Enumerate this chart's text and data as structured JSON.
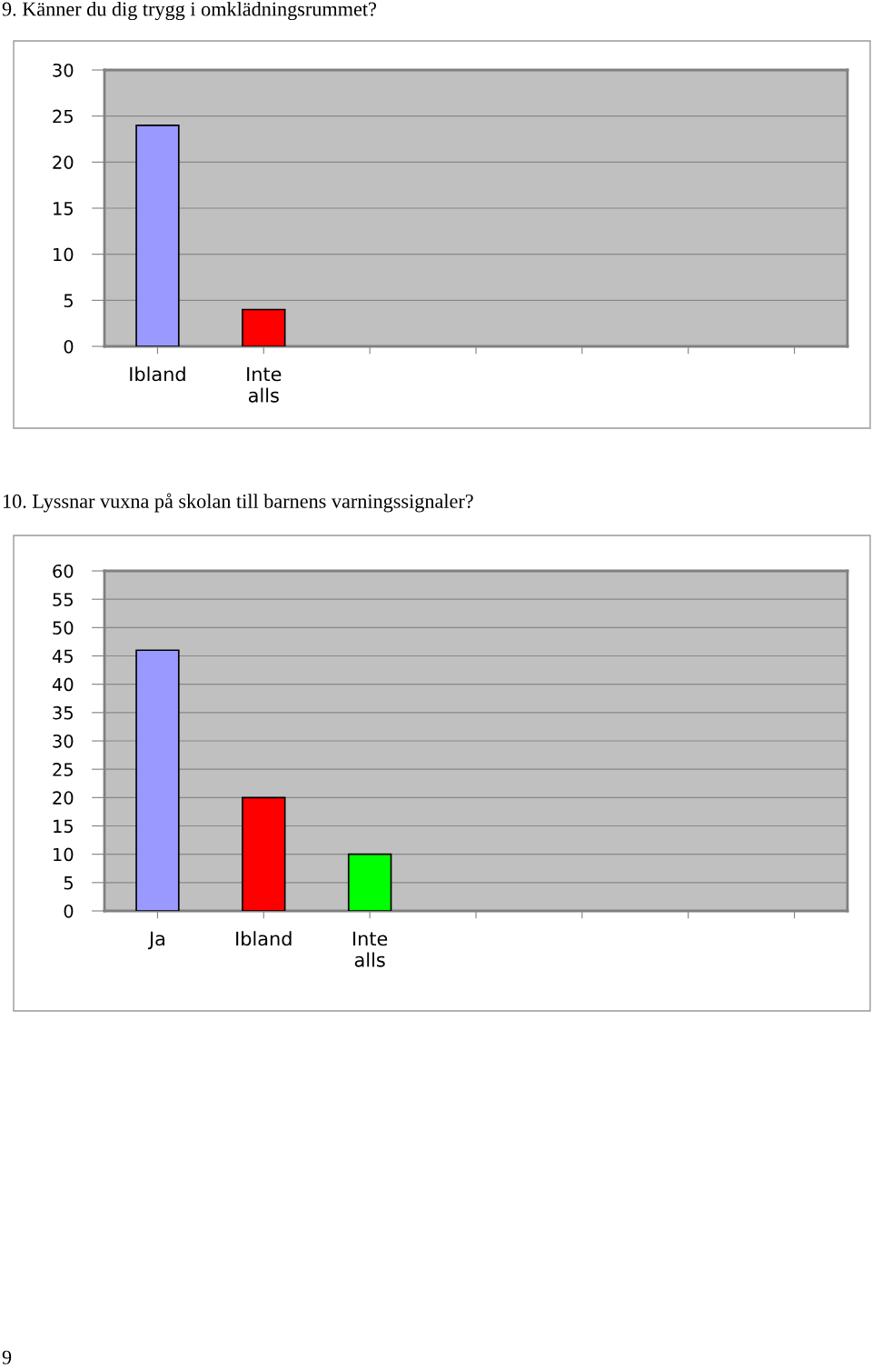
{
  "chart_data": [
    {
      "type": "bar",
      "title": "9. Känner du dig trygg i omklädningsrummet?",
      "categories": [
        "Ibland",
        "Inte alls",
        null,
        null,
        null,
        null,
        null
      ],
      "values": [
        24,
        4,
        null,
        null,
        null,
        null,
        null
      ],
      "colors": [
        "#9999ff",
        "#ff0000",
        "#9999ff",
        "#9999ff",
        "#9999ff",
        "#9999ff",
        "#9999ff"
      ],
      "ylim": [
        0,
        30
      ],
      "yticks": [
        0,
        5,
        10,
        15,
        20,
        25,
        30
      ],
      "grid": "y",
      "legend": false
    },
    {
      "type": "bar",
      "title": "10. Lyssnar vuxna på skolan till barnens varningssignaler?",
      "categories": [
        "Ja",
        "Ibland",
        "Inte alls",
        null,
        null,
        null,
        null
      ],
      "values": [
        46,
        20,
        10,
        null,
        null,
        null,
        null
      ],
      "colors": [
        "#9999ff",
        "#ff0000",
        "#00ff00",
        "#9999ff",
        "#9999ff",
        "#9999ff",
        "#9999ff"
      ],
      "ylim": [
        0,
        60
      ],
      "yticks": [
        0,
        5,
        10,
        15,
        20,
        25,
        30,
        35,
        40,
        45,
        50,
        55,
        60
      ],
      "grid": "y",
      "legend": false,
      "annotations": [
        "9"
      ]
    }
  ]
}
